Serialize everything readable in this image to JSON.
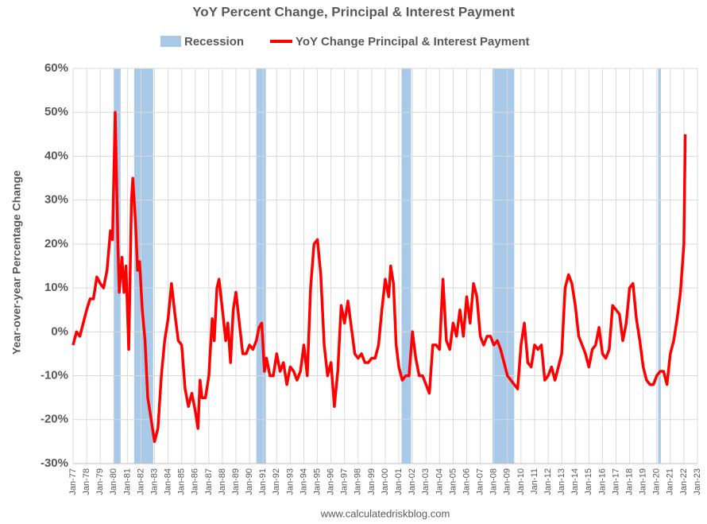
{
  "chart_data": {
    "type": "line",
    "title": "YoY Percent Change, Principal & Interest Payment",
    "y_label": "Year-over-year Percentage Change",
    "source": "www.calculatedriskblog.com",
    "recession": {
      "name": "Recession",
      "color": "#a9c9e9",
      "periods": [
        [
          1980.0,
          1980.5
        ],
        [
          1981.5,
          1982.9
        ],
        [
          1990.5,
          1991.2
        ],
        [
          2001.2,
          2001.9
        ],
        [
          2007.9,
          2009.5
        ],
        [
          2020.1,
          2020.3
        ]
      ]
    },
    "x": [
      1977.0,
      1977.25,
      1977.5,
      1977.75,
      1978.0,
      1978.25,
      1978.5,
      1978.75,
      1979.0,
      1979.25,
      1979.5,
      1979.75,
      1979.9,
      1980.1,
      1980.3,
      1980.4,
      1980.6,
      1980.75,
      1980.9,
      1981.1,
      1981.3,
      1981.4,
      1981.6,
      1981.75,
      1981.9,
      1982.1,
      1982.3,
      1982.5,
      1982.75,
      1983.0,
      1983.25,
      1983.5,
      1983.75,
      1984.0,
      1984.25,
      1984.5,
      1984.75,
      1985.0,
      1985.25,
      1985.5,
      1985.75,
      1986.0,
      1986.2,
      1986.35,
      1986.5,
      1986.75,
      1987.0,
      1987.25,
      1987.4,
      1987.6,
      1987.75,
      1988.0,
      1988.25,
      1988.4,
      1988.6,
      1988.8,
      1989.0,
      1989.25,
      1989.5,
      1989.75,
      1990.0,
      1990.25,
      1990.5,
      1990.7,
      1990.9,
      1991.1,
      1991.25,
      1991.5,
      1991.75,
      1992.0,
      1992.25,
      1992.5,
      1992.75,
      1993.0,
      1993.25,
      1993.5,
      1993.75,
      1994.0,
      1994.25,
      1994.5,
      1994.75,
      1995.0,
      1995.25,
      1995.5,
      1995.75,
      1996.0,
      1996.25,
      1996.5,
      1996.75,
      1997.0,
      1997.25,
      1997.5,
      1997.75,
      1998.0,
      1998.25,
      1998.5,
      1998.75,
      1999.0,
      1999.25,
      1999.5,
      1999.75,
      2000.0,
      2000.25,
      2000.4,
      2000.6,
      2000.8,
      2001.0,
      2001.25,
      2001.5,
      2001.75,
      2002.0,
      2002.25,
      2002.5,
      2002.75,
      2003.0,
      2003.25,
      2003.5,
      2003.75,
      2004.0,
      2004.25,
      2004.5,
      2004.75,
      2005.0,
      2005.25,
      2005.5,
      2005.75,
      2006.0,
      2006.25,
      2006.5,
      2006.75,
      2007.0,
      2007.25,
      2007.5,
      2007.75,
      2008.0,
      2008.25,
      2008.5,
      2008.75,
      2009.0,
      2009.25,
      2009.5,
      2009.75,
      2010.0,
      2010.25,
      2010.5,
      2010.75,
      2011.0,
      2011.25,
      2011.5,
      2011.75,
      2012.0,
      2012.25,
      2012.5,
      2012.75,
      2013.0,
      2013.25,
      2013.5,
      2013.75,
      2014.0,
      2014.25,
      2014.5,
      2014.75,
      2015.0,
      2015.25,
      2015.5,
      2015.75,
      2016.0,
      2016.25,
      2016.5,
      2016.75,
      2017.0,
      2017.25,
      2017.5,
      2017.75,
      2018.0,
      2018.25,
      2018.5,
      2018.75,
      2019.0,
      2019.25,
      2019.5,
      2019.75,
      2020.0,
      2020.25,
      2020.5,
      2020.75,
      2021.0,
      2021.25,
      2021.5,
      2021.75,
      2022.0,
      2022.1
    ],
    "series": [
      {
        "name": "YoY Change Principal & Interest Payment",
        "color": "#ff0000",
        "values": [
          -3,
          0,
          -1,
          2,
          5,
          7.5,
          7.5,
          12.5,
          11,
          10,
          14,
          23,
          21,
          50,
          20,
          9,
          17,
          9,
          15,
          -4,
          30,
          35,
          25,
          14,
          16,
          5,
          -2,
          -15,
          -20,
          -25,
          -22,
          -10,
          -2,
          3,
          11,
          4,
          -2,
          -3,
          -13,
          -17,
          -14,
          -18,
          -22,
          -11,
          -15,
          -15,
          -10,
          3,
          -2,
          10,
          12,
          5,
          -2,
          2,
          -7,
          5,
          9,
          2,
          -5,
          -5,
          -3,
          -4,
          -2,
          1,
          2,
          -9,
          -6,
          -10,
          -10,
          -5,
          -9,
          -7,
          -12,
          -8,
          -9,
          -11,
          -9,
          -3,
          -10,
          10,
          20,
          21,
          13,
          -3,
          -10,
          -7,
          -17,
          -9,
          6,
          2,
          7,
          1,
          -5,
          -6,
          -5,
          -7,
          -7,
          -6,
          -6,
          -3,
          5,
          12,
          8,
          15,
          11,
          -3,
          -8,
          -11,
          -10,
          -10,
          0,
          -6,
          -10,
          -10,
          -12,
          -14,
          -3,
          -3,
          -4,
          12,
          -2,
          -4,
          2,
          -1,
          5,
          -1,
          8,
          2,
          11,
          8,
          -1,
          -3,
          -1,
          -1,
          -3,
          -2,
          -4,
          -7,
          -10,
          -11,
          -12,
          -13,
          -3,
          2,
          -7,
          -8,
          -3,
          -4,
          -3,
          -11,
          -10,
          -8,
          -11,
          -8,
          -5,
          10,
          13,
          11,
          6,
          -1,
          -3,
          -5,
          -8,
          -4,
          -3,
          1,
          -5,
          -6,
          -4,
          6,
          5,
          4,
          -2,
          2,
          10,
          11,
          3,
          -2,
          -8,
          -11,
          -12,
          -12,
          -10,
          -9,
          -9,
          -12,
          -5,
          -2,
          3,
          9,
          20,
          45
        ]
      }
    ],
    "xlim": [
      1977,
      2023
    ],
    "xticks": [
      {
        "value": 1977,
        "label": "Jan-77"
      },
      {
        "value": 1978,
        "label": "Jan-78"
      },
      {
        "value": 1979,
        "label": "Jan-79"
      },
      {
        "value": 1980,
        "label": "Jan-80"
      },
      {
        "value": 1981,
        "label": "Jan-81"
      },
      {
        "value": 1982,
        "label": "Jan-82"
      },
      {
        "value": 1983,
        "label": "Jan-83"
      },
      {
        "value": 1984,
        "label": "Jan-84"
      },
      {
        "value": 1985,
        "label": "Jan-85"
      },
      {
        "value": 1986,
        "label": "Jan-86"
      },
      {
        "value": 1987,
        "label": "Jan-87"
      },
      {
        "value": 1988,
        "label": "Jan-88"
      },
      {
        "value": 1989,
        "label": "Jan-89"
      },
      {
        "value": 1990,
        "label": "Jan-90"
      },
      {
        "value": 1991,
        "label": "Jan-91"
      },
      {
        "value": 1992,
        "label": "Jan-92"
      },
      {
        "value": 1993,
        "label": "Jan-93"
      },
      {
        "value": 1994,
        "label": "Jan-94"
      },
      {
        "value": 1995,
        "label": "Jan-95"
      },
      {
        "value": 1996,
        "label": "Jan-96"
      },
      {
        "value": 1997,
        "label": "Jan-97"
      },
      {
        "value": 1998,
        "label": "Jan-98"
      },
      {
        "value": 1999,
        "label": "Jan-99"
      },
      {
        "value": 2000,
        "label": "Jan-00"
      },
      {
        "value": 2001,
        "label": "Jan-01"
      },
      {
        "value": 2002,
        "label": "Jan-02"
      },
      {
        "value": 2003,
        "label": "Jan-03"
      },
      {
        "value": 2004,
        "label": "Jan-04"
      },
      {
        "value": 2005,
        "label": "Jan-05"
      },
      {
        "value": 2006,
        "label": "Jan-06"
      },
      {
        "value": 2007,
        "label": "Jan-07"
      },
      {
        "value": 2008,
        "label": "Jan-08"
      },
      {
        "value": 2009,
        "label": "Jan-09"
      },
      {
        "value": 2010,
        "label": "Jan-10"
      },
      {
        "value": 2011,
        "label": "Jan-11"
      },
      {
        "value": 2012,
        "label": "Jan-12"
      },
      {
        "value": 2013,
        "label": "Jan-13"
      },
      {
        "value": 2014,
        "label": "Jan-14"
      },
      {
        "value": 2015,
        "label": "Jan-15"
      },
      {
        "value": 2016,
        "label": "Jan-16"
      },
      {
        "value": 2017,
        "label": "Jan-17"
      },
      {
        "value": 2018,
        "label": "Jan-18"
      },
      {
        "value": 2019,
        "label": "Jan-19"
      },
      {
        "value": 2020,
        "label": "Jan-20"
      },
      {
        "value": 2021,
        "label": "Jan-21"
      },
      {
        "value": 2022,
        "label": "Jan-22"
      },
      {
        "value": 2023,
        "label": "Jan-23"
      }
    ],
    "ylim": [
      -30,
      60
    ],
    "yticks": [
      {
        "value": -30,
        "label": "-30%"
      },
      {
        "value": -20,
        "label": "-20%"
      },
      {
        "value": -10,
        "label": "-10%"
      },
      {
        "value": 0,
        "label": "0%"
      },
      {
        "value": 10,
        "label": "10%"
      },
      {
        "value": 20,
        "label": "20%"
      },
      {
        "value": 30,
        "label": "30%"
      },
      {
        "value": 40,
        "label": "40%"
      },
      {
        "value": 50,
        "label": "50%"
      },
      {
        "value": 60,
        "label": "60%"
      }
    ],
    "grid": true
  }
}
